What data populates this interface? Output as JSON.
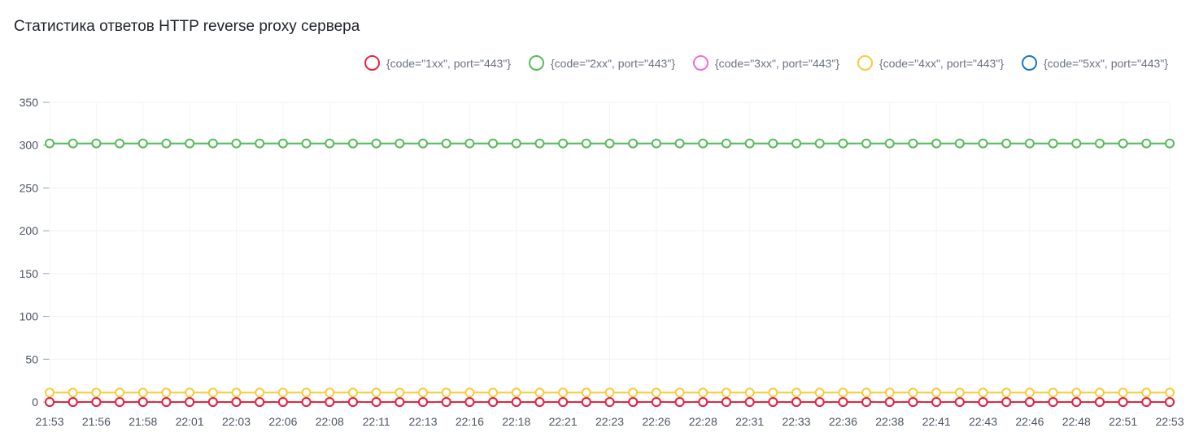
{
  "title": "Статистика ответов HTTP reverse proxy сервера",
  "chart_data": {
    "type": "line",
    "title": "Статистика ответов HTTP reverse proxy сервера",
    "xlabel": "",
    "ylabel": "",
    "ylim": [
      0,
      350
    ],
    "y_ticks": [
      0,
      50,
      100,
      150,
      200,
      250,
      300,
      350
    ],
    "x_tick_labels": [
      "21:53",
      "21:56",
      "21:58",
      "22:01",
      "22:03",
      "22:06",
      "22:08",
      "22:11",
      "22:13",
      "22:16",
      "22:18",
      "22:21",
      "22:23",
      "22:26",
      "22:28",
      "22:31",
      "22:33",
      "22:36",
      "22:38",
      "22:41",
      "22:43",
      "22:46",
      "22:48",
      "22:51",
      "22:53"
    ],
    "point_count": 49,
    "grid": true,
    "legend_position": "top-right",
    "series": [
      {
        "name": "{code=\"1xx\", port=\"443\"}",
        "color": "#e8233f",
        "value": 0
      },
      {
        "name": "{code=\"2xx\", port=\"443\"}",
        "color": "#55bb5a",
        "value": 302
      },
      {
        "name": "{code=\"3xx\", port=\"443\"}",
        "color": "#f66ad6",
        "value": 0
      },
      {
        "name": "{code=\"4xx\", port=\"443\"}",
        "color": "#f9cb3a",
        "value": 11
      },
      {
        "name": "{code=\"5xx\", port=\"443\"}",
        "color": "#1876c1",
        "value": 0
      }
    ]
  }
}
